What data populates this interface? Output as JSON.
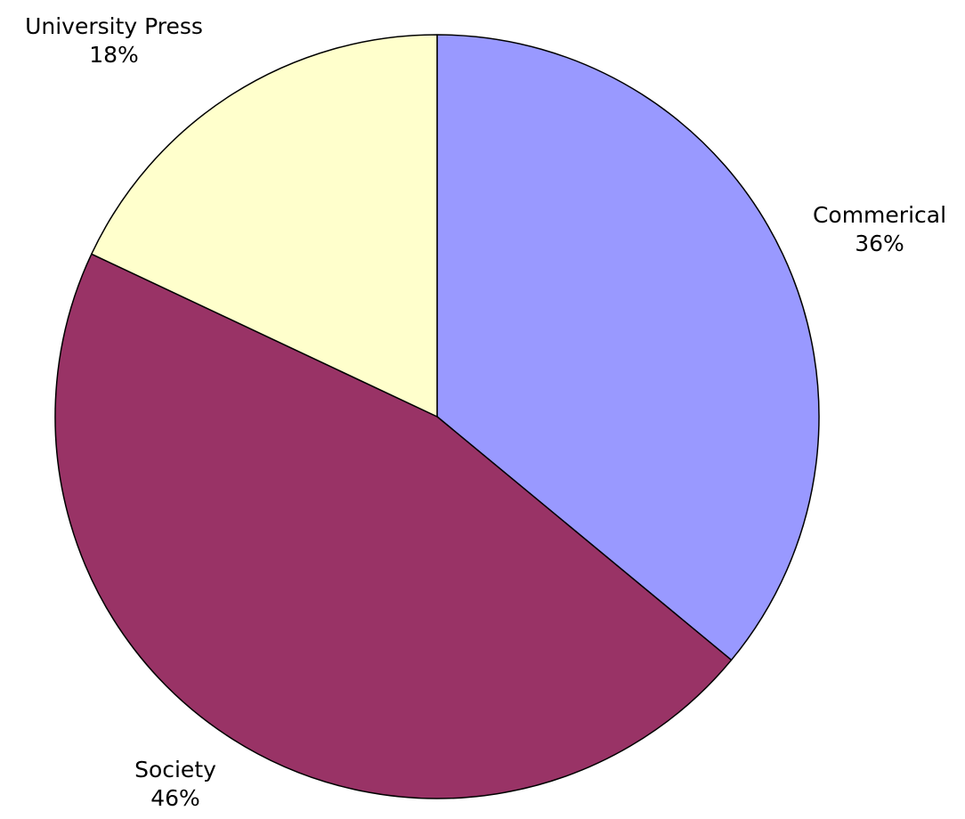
{
  "chart_data": {
    "type": "pie",
    "title": "",
    "categories": [
      "Commerical",
      "Society",
      "University Press"
    ],
    "values": [
      36,
      46,
      18
    ],
    "unit": "%",
    "start_angle_deg": 0,
    "direction": "clockwise",
    "legend": "none",
    "labels": [
      {
        "category": "Commerical",
        "percent_text": "36%"
      },
      {
        "category": "Society",
        "percent_text": "46%"
      },
      {
        "category": "University Press",
        "percent_text": "18%"
      }
    ],
    "colors": [
      "#9999ff",
      "#993366",
      "#ffffcc"
    ],
    "outline_color": "#000000"
  }
}
